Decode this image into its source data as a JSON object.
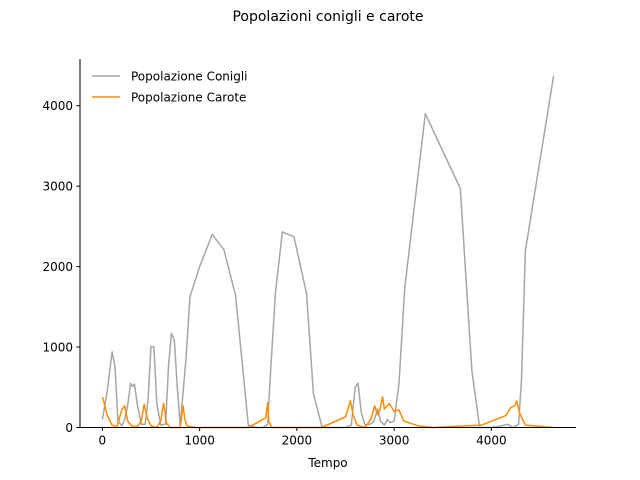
{
  "chart_data": {
    "type": "line",
    "title": "Popolazioni conigli e carote",
    "xlabel": "Tempo",
    "ylabel": "",
    "xlim": [
      -230,
      4870
    ],
    "ylim": [
      0,
      4580
    ],
    "xticks": [
      0,
      1000,
      2000,
      3000,
      4000
    ],
    "yticks": [
      0,
      1000,
      2000,
      3000,
      4000
    ],
    "grid": false,
    "legend_position": "top-left",
    "series": [
      {
        "name": "Popolazione Conigli",
        "color": "#a6a6a6",
        "points": [
          [
            0,
            100
          ],
          [
            50,
            450
          ],
          [
            100,
            940
          ],
          [
            130,
            760
          ],
          [
            160,
            90
          ],
          [
            200,
            20
          ],
          [
            230,
            100
          ],
          [
            260,
            280
          ],
          [
            290,
            550
          ],
          [
            310,
            510
          ],
          [
            330,
            540
          ],
          [
            360,
            280
          ],
          [
            400,
            40
          ],
          [
            440,
            40
          ],
          [
            470,
            350
          ],
          [
            500,
            1010
          ],
          [
            530,
            1000
          ],
          [
            560,
            300
          ],
          [
            600,
            30
          ],
          [
            650,
            40
          ],
          [
            680,
            760
          ],
          [
            710,
            1170
          ],
          [
            740,
            1090
          ],
          [
            770,
            500
          ],
          [
            800,
            30
          ],
          [
            860,
            850
          ],
          [
            900,
            1620
          ],
          [
            1000,
            2000
          ],
          [
            1130,
            2400
          ],
          [
            1250,
            2210
          ],
          [
            1370,
            1640
          ],
          [
            1500,
            30
          ],
          [
            1580,
            0
          ],
          [
            1650,
            0
          ],
          [
            1700,
            40
          ],
          [
            1730,
            700
          ],
          [
            1780,
            1680
          ],
          [
            1850,
            2430
          ],
          [
            1970,
            2370
          ],
          [
            2100,
            1660
          ],
          [
            2170,
            420
          ],
          [
            2260,
            0
          ],
          [
            2500,
            0
          ],
          [
            2560,
            30
          ],
          [
            2600,
            500
          ],
          [
            2630,
            550
          ],
          [
            2660,
            200
          ],
          [
            2700,
            30
          ],
          [
            2750,
            40
          ],
          [
            2790,
            70
          ],
          [
            2830,
            230
          ],
          [
            2860,
            80
          ],
          [
            2900,
            30
          ],
          [
            2930,
            100
          ],
          [
            2960,
            60
          ],
          [
            3000,
            80
          ],
          [
            3050,
            550
          ],
          [
            3110,
            1740
          ],
          [
            3320,
            3900
          ],
          [
            3680,
            2970
          ],
          [
            3800,
            700
          ],
          [
            3880,
            0
          ],
          [
            4000,
            0
          ],
          [
            4100,
            20
          ],
          [
            4170,
            40
          ],
          [
            4220,
            0
          ],
          [
            4280,
            40
          ],
          [
            4310,
            600
          ],
          [
            4350,
            2200
          ],
          [
            4640,
            4370
          ]
        ]
      },
      {
        "name": "Popolazione Carote",
        "color": "#ff8c00",
        "points": [
          [
            0,
            380
          ],
          [
            20,
            300
          ],
          [
            50,
            150
          ],
          [
            100,
            30
          ],
          [
            150,
            10
          ],
          [
            200,
            220
          ],
          [
            230,
            270
          ],
          [
            260,
            80
          ],
          [
            300,
            20
          ],
          [
            360,
            10
          ],
          [
            400,
            80
          ],
          [
            430,
            290
          ],
          [
            460,
            120
          ],
          [
            500,
            20
          ],
          [
            560,
            0
          ],
          [
            600,
            80
          ],
          [
            630,
            300
          ],
          [
            660,
            50
          ],
          [
            700,
            0
          ],
          [
            800,
            0
          ],
          [
            830,
            270
          ],
          [
            850,
            90
          ],
          [
            870,
            20
          ],
          [
            950,
            0
          ],
          [
            1500,
            0
          ],
          [
            1680,
            120
          ],
          [
            1700,
            310
          ],
          [
            1710,
            90
          ],
          [
            1740,
            0
          ],
          [
            2250,
            0
          ],
          [
            2500,
            130
          ],
          [
            2550,
            330
          ],
          [
            2580,
            150
          ],
          [
            2620,
            30
          ],
          [
            2700,
            0
          ],
          [
            2760,
            100
          ],
          [
            2800,
            270
          ],
          [
            2830,
            160
          ],
          [
            2850,
            200
          ],
          [
            2880,
            380
          ],
          [
            2900,
            230
          ],
          [
            2950,
            300
          ],
          [
            3000,
            200
          ],
          [
            3050,
            220
          ],
          [
            3100,
            80
          ],
          [
            3250,
            20
          ],
          [
            3400,
            0
          ],
          [
            3900,
            30
          ],
          [
            4150,
            150
          ],
          [
            4200,
            250
          ],
          [
            4240,
            270
          ],
          [
            4260,
            330
          ],
          [
            4290,
            180
          ],
          [
            4350,
            30
          ],
          [
            4640,
            0
          ]
        ]
      }
    ]
  }
}
